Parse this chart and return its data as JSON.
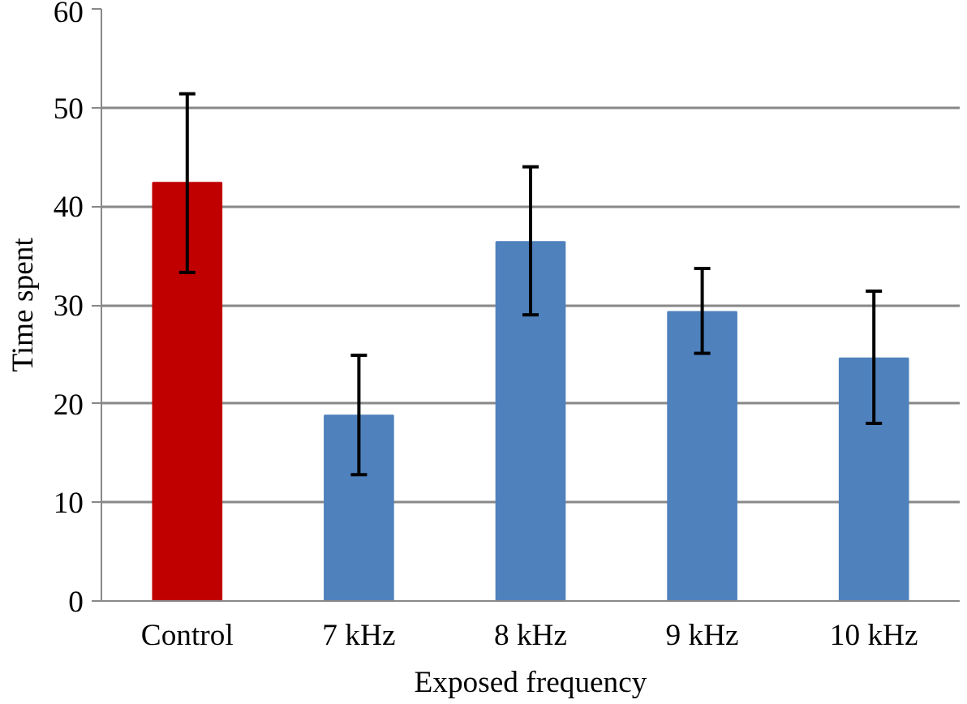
{
  "chart_data": {
    "type": "bar",
    "xlabel": "Exposed frequency",
    "ylabel": "Time spent",
    "categories": [
      "Control",
      "7 kHz",
      "8 kHz",
      "9 kHz",
      "10 kHz"
    ],
    "values": [
      42.4,
      18.8,
      36.4,
      29.3,
      24.6
    ],
    "colors": [
      "#c00000",
      "#4f81bd",
      "#4f81bd",
      "#4f81bd",
      "#4f81bd"
    ],
    "errors": [
      [
        33.3,
        51.4
      ],
      [
        12.8,
        24.9
      ],
      [
        29.0,
        44.0
      ],
      [
        25.1,
        33.7
      ],
      [
        18.0,
        31.4
      ]
    ],
    "ylim": [
      0,
      60
    ],
    "yticks": [
      0,
      10,
      20,
      30,
      40,
      50,
      60
    ],
    "grid": "y"
  }
}
